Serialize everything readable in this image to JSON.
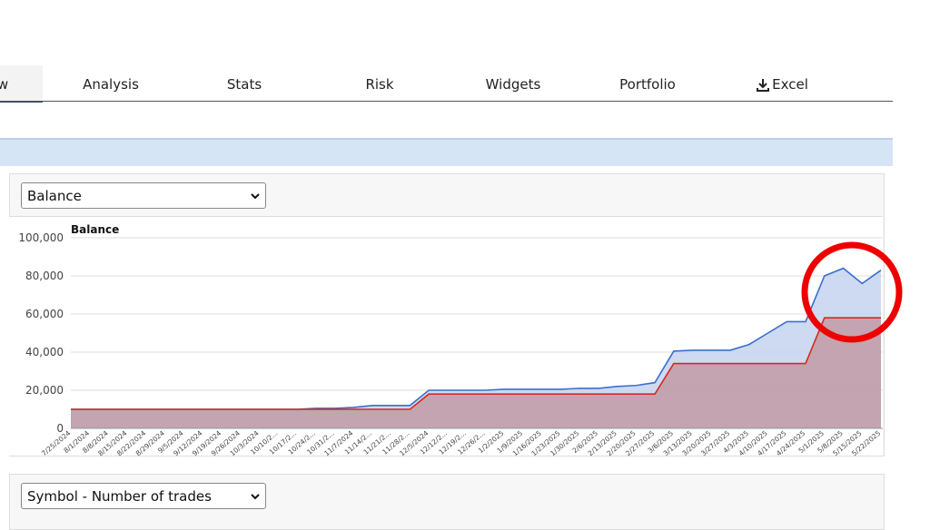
{
  "tabs": [
    "w",
    "Analysis",
    "Stats",
    "Risk",
    "Widgets",
    "Portfolio",
    "Excel"
  ],
  "dropdowns": [
    "Balance",
    "Symbol - Number of trades"
  ],
  "chart_data": {
    "type": "line",
    "title": "Balance",
    "area": true,
    "grid": true,
    "categories": [
      "7/25/2024",
      "8/1/2024",
      "8/8/2024",
      "8/15/2024",
      "8/22/2024",
      "8/29/2024",
      "9/5/2024",
      "9/12/2024",
      "9/19/2024",
      "9/26/2024",
      "10/3/2024",
      "10/10/2...",
      "10/17/2...",
      "10/24/2...",
      "10/31/2...",
      "11/7/2024",
      "11/14/2...",
      "11/21/2...",
      "11/28/2...",
      "12/5/2024",
      "12/12/2...",
      "12/19/2...",
      "12/26/2...",
      "1/2/2025",
      "1/9/2025",
      "1/16/2025",
      "1/23/2025",
      "1/30/2025",
      "2/6/2025",
      "2/13/2025",
      "2/20/2025",
      "2/27/2025",
      "3/6/2025",
      "3/13/2025",
      "3/20/2025",
      "3/27/2025",
      "4/3/2025",
      "4/10/2025",
      "4/17/2025",
      "4/24/2025",
      "5/1/2025",
      "5/8/2025",
      "5/15/2025",
      "5/22/2025"
    ],
    "series": [
      {
        "color": "#3a6fcf",
        "fill": "#c6d3ef",
        "values": [
          10000,
          10000,
          10000,
          10000,
          10000,
          10000,
          10000,
          10000,
          10000,
          10000,
          10000,
          10000,
          10000,
          10500,
          10500,
          11000,
          12000,
          12000,
          12000,
          20000,
          20000,
          20000,
          20000,
          20500,
          20500,
          20500,
          20500,
          21000,
          21000,
          22000,
          22500,
          24000,
          40500,
          41000,
          41000,
          41000,
          44000,
          50000,
          56000,
          56000,
          80000,
          84000,
          76000,
          83000
        ]
      },
      {
        "color": "#d62a1e",
        "fill": "#c19aa5",
        "values": [
          10000,
          10000,
          10000,
          10000,
          10000,
          10000,
          10000,
          10000,
          10000,
          10000,
          10000,
          10000,
          10000,
          10000,
          10000,
          10000,
          10000,
          10000,
          10000,
          18000,
          18000,
          18000,
          18000,
          18000,
          18000,
          18000,
          18000,
          18000,
          18000,
          18000,
          18000,
          18000,
          34000,
          34000,
          34000,
          34000,
          34000,
          34000,
          34000,
          34000,
          58000,
          58000,
          58000,
          58000
        ]
      }
    ],
    "ylim": [
      0,
      100000
    ],
    "yticks": [
      0,
      {
        "value": 20000,
        "label": "20,000"
      },
      {
        "value": 40000,
        "label": "40,000"
      },
      {
        "value": 60000,
        "label": "60,000"
      },
      {
        "value": 80000,
        "label": "80,000"
      },
      {
        "value": 100000,
        "label": "100,000"
      }
    ]
  }
}
